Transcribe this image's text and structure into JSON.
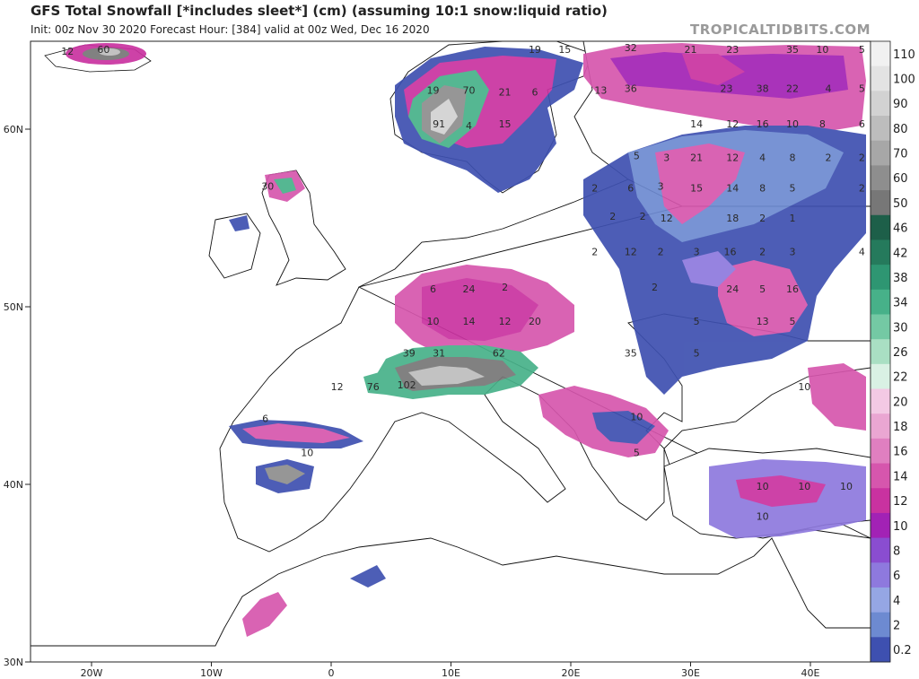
{
  "header": {
    "title": "GFS Total Snowfall [*includes sleet*] (cm) (assuming 10:1 snow:liquid ratio)",
    "subtitle": "Init: 00z Nov 30 2020   Forecast Hour: [384]   valid at 00z Wed, Dec 16 2020",
    "brand": "TROPICALTIDBITS.COM"
  },
  "map": {
    "lat_ticks": [
      {
        "label": "60N",
        "lat": 60
      },
      {
        "label": "50N",
        "lat": 50
      },
      {
        "label": "40N",
        "lat": 40
      },
      {
        "label": "30N",
        "lat": 30
      }
    ],
    "lon_ticks": [
      {
        "label": "20W",
        "lon": -20
      },
      {
        "label": "10W",
        "lon": -10
      },
      {
        "label": "0",
        "lon": 0
      },
      {
        "label": "10E",
        "lon": 10
      },
      {
        "label": "20E",
        "lon": 20
      },
      {
        "label": "30E",
        "lon": 30
      },
      {
        "label": "40E",
        "lon": 40
      }
    ],
    "colors": {
      "ocean": "#ffffff",
      "land": "#ffffff",
      "coast": "#111111",
      "border": "#333333"
    }
  },
  "colorbar": {
    "levels": [
      {
        "label": "110",
        "color": "#f1f1f1"
      },
      {
        "label": "100",
        "color": "#e3e3e3"
      },
      {
        "label": "90",
        "color": "#d2d2d2"
      },
      {
        "label": "80",
        "color": "#bdbdbd"
      },
      {
        "label": "70",
        "color": "#a7a7a7"
      },
      {
        "label": "60",
        "color": "#8e8e8e"
      },
      {
        "label": "50",
        "color": "#777777"
      },
      {
        "label": "46",
        "color": "#1d5f49"
      },
      {
        "label": "42",
        "color": "#257a5c"
      },
      {
        "label": "38",
        "color": "#2e9672"
      },
      {
        "label": "34",
        "color": "#47b189"
      },
      {
        "label": "30",
        "color": "#74c9a4"
      },
      {
        "label": "26",
        "color": "#a9dfc3"
      },
      {
        "label": "22",
        "color": "#d9f1e4"
      },
      {
        "label": "20",
        "color": "#f3c9e4"
      },
      {
        "label": "18",
        "color": "#eaa6d2"
      },
      {
        "label": "16",
        "color": "#e07fc0"
      },
      {
        "label": "14",
        "color": "#d656ad"
      },
      {
        "label": "12",
        "color": "#c932a0"
      },
      {
        "label": "10",
        "color": "#a222b5"
      },
      {
        "label": "8",
        "color": "#8a4dd0"
      },
      {
        "label": "6",
        "color": "#8e79de"
      },
      {
        "label": "4",
        "color": "#95a6e4"
      },
      {
        "label": "2",
        "color": "#6d8ad1"
      },
      {
        "label": "0.2",
        "color": "#3e50b0"
      }
    ]
  },
  "snow_labels": [
    {
      "text": "60",
      "lon": -19,
      "lat": 64.3
    },
    {
      "text": "12",
      "lon": -22,
      "lat": 64.2
    },
    {
      "text": "19",
      "lon": 8.5,
      "lat": 62.0
    },
    {
      "text": "70",
      "lon": 11.5,
      "lat": 62.0
    },
    {
      "text": "21",
      "lon": 14.5,
      "lat": 61.9
    },
    {
      "text": "6",
      "lon": 17.0,
      "lat": 61.9
    },
    {
      "text": "91",
      "lon": 9.0,
      "lat": 60.1
    },
    {
      "text": "4",
      "lon": 11.5,
      "lat": 60.0
    },
    {
      "text": "15",
      "lon": 14.5,
      "lat": 60.1
    },
    {
      "text": "19",
      "lon": 17.0,
      "lat": 64.3
    },
    {
      "text": "15",
      "lon": 19.5,
      "lat": 64.3
    },
    {
      "text": "32",
      "lon": 25.0,
      "lat": 64.4
    },
    {
      "text": "21",
      "lon": 30.0,
      "lat": 64.3
    },
    {
      "text": "23",
      "lon": 33.5,
      "lat": 64.3
    },
    {
      "text": "35",
      "lon": 38.5,
      "lat": 64.3
    },
    {
      "text": "10",
      "lon": 41.0,
      "lat": 64.3
    },
    {
      "text": "5",
      "lon": 44.3,
      "lat": 64.3
    },
    {
      "text": "13",
      "lon": 22.5,
      "lat": 62.0
    },
    {
      "text": "36",
      "lon": 25.0,
      "lat": 62.1
    },
    {
      "text": "23",
      "lon": 33.0,
      "lat": 62.1
    },
    {
      "text": "38",
      "lon": 36.0,
      "lat": 62.1
    },
    {
      "text": "22",
      "lon": 38.5,
      "lat": 62.1
    },
    {
      "text": "4",
      "lon": 41.5,
      "lat": 62.1
    },
    {
      "text": "5",
      "lon": 44.3,
      "lat": 62.1
    },
    {
      "text": "14",
      "lon": 30.5,
      "lat": 60.1
    },
    {
      "text": "12",
      "lon": 33.5,
      "lat": 60.1
    },
    {
      "text": "16",
      "lon": 36.0,
      "lat": 60.1
    },
    {
      "text": "10",
      "lon": 38.5,
      "lat": 60.1
    },
    {
      "text": "8",
      "lon": 41.0,
      "lat": 60.1
    },
    {
      "text": "6",
      "lon": 44.3,
      "lat": 60.1
    },
    {
      "text": "5",
      "lon": 25.5,
      "lat": 58.3
    },
    {
      "text": "3",
      "lon": 28.0,
      "lat": 58.2
    },
    {
      "text": "21",
      "lon": 30.5,
      "lat": 58.2
    },
    {
      "text": "12",
      "lon": 33.5,
      "lat": 58.2
    },
    {
      "text": "4",
      "lon": 36.0,
      "lat": 58.2
    },
    {
      "text": "8",
      "lon": 38.5,
      "lat": 58.2
    },
    {
      "text": "2",
      "lon": 41.5,
      "lat": 58.2
    },
    {
      "text": "2",
      "lon": 44.3,
      "lat": 58.2
    },
    {
      "text": "30",
      "lon": -5.3,
      "lat": 56.6
    },
    {
      "text": "2",
      "lon": 22.0,
      "lat": 56.5
    },
    {
      "text": "6",
      "lon": 25.0,
      "lat": 56.5
    },
    {
      "text": "3",
      "lon": 27.5,
      "lat": 56.6
    },
    {
      "text": "15",
      "lon": 30.5,
      "lat": 56.5
    },
    {
      "text": "14",
      "lon": 33.5,
      "lat": 56.5
    },
    {
      "text": "8",
      "lon": 36.0,
      "lat": 56.5
    },
    {
      "text": "5",
      "lon": 38.5,
      "lat": 56.5
    },
    {
      "text": "2",
      "lon": 44.3,
      "lat": 56.5
    },
    {
      "text": "2",
      "lon": 23.5,
      "lat": 54.9
    },
    {
      "text": "2",
      "lon": 26.0,
      "lat": 54.9
    },
    {
      "text": "12",
      "lon": 28.0,
      "lat": 54.8
    },
    {
      "text": "18",
      "lon": 33.5,
      "lat": 54.8
    },
    {
      "text": "2",
      "lon": 36.0,
      "lat": 54.8
    },
    {
      "text": "1",
      "lon": 38.5,
      "lat": 54.8
    },
    {
      "text": "2",
      "lon": 22.0,
      "lat": 52.9
    },
    {
      "text": "12",
      "lon": 25.0,
      "lat": 52.9
    },
    {
      "text": "2",
      "lon": 27.5,
      "lat": 52.9
    },
    {
      "text": "3",
      "lon": 30.5,
      "lat": 52.9
    },
    {
      "text": "16",
      "lon": 33.3,
      "lat": 52.9
    },
    {
      "text": "2",
      "lon": 36.0,
      "lat": 52.9
    },
    {
      "text": "3",
      "lon": 38.5,
      "lat": 52.9
    },
    {
      "text": "4",
      "lon": 44.3,
      "lat": 52.9
    },
    {
      "text": "6",
      "lon": 8.5,
      "lat": 50.8
    },
    {
      "text": "24",
      "lon": 11.5,
      "lat": 50.8
    },
    {
      "text": "2",
      "lon": 14.5,
      "lat": 50.9
    },
    {
      "text": "2",
      "lon": 27.0,
      "lat": 50.9
    },
    {
      "text": "24",
      "lon": 33.5,
      "lat": 50.8
    },
    {
      "text": "5",
      "lon": 36.0,
      "lat": 50.8
    },
    {
      "text": "16",
      "lon": 38.5,
      "lat": 50.8
    },
    {
      "text": "10",
      "lon": 8.5,
      "lat": 49.0
    },
    {
      "text": "14",
      "lon": 11.5,
      "lat": 49.0
    },
    {
      "text": "12",
      "lon": 14.5,
      "lat": 49.0
    },
    {
      "text": "20",
      "lon": 17.0,
      "lat": 49.0
    },
    {
      "text": "5",
      "lon": 30.5,
      "lat": 49.0
    },
    {
      "text": "13",
      "lon": 36.0,
      "lat": 49.0
    },
    {
      "text": "5",
      "lon": 38.5,
      "lat": 49.0
    },
    {
      "text": "39",
      "lon": 6.5,
      "lat": 47.2
    },
    {
      "text": "31",
      "lon": 9.0,
      "lat": 47.2
    },
    {
      "text": "62",
      "lon": 14.0,
      "lat": 47.2
    },
    {
      "text": "35",
      "lon": 25.0,
      "lat": 47.2
    },
    {
      "text": "5",
      "lon": 30.5,
      "lat": 47.2
    },
    {
      "text": "12",
      "lon": 0.5,
      "lat": 45.3
    },
    {
      "text": "76",
      "lon": 3.5,
      "lat": 45.3
    },
    {
      "text": "102",
      "lon": 6.3,
      "lat": 45.4
    },
    {
      "text": "10",
      "lon": 39.5,
      "lat": 45.3
    },
    {
      "text": "10",
      "lon": 25.5,
      "lat": 43.6
    },
    {
      "text": "6",
      "lon": -5.5,
      "lat": 43.5
    },
    {
      "text": "10",
      "lon": -2.0,
      "lat": 41.6
    },
    {
      "text": "5",
      "lon": 25.5,
      "lat": 41.6
    },
    {
      "text": "10",
      "lon": 36.0,
      "lat": 39.7
    },
    {
      "text": "10",
      "lon": 39.5,
      "lat": 39.7
    },
    {
      "text": "10",
      "lon": 43.0,
      "lat": 39.7
    },
    {
      "text": "10",
      "lon": 36.0,
      "lat": 38.0
    }
  ]
}
